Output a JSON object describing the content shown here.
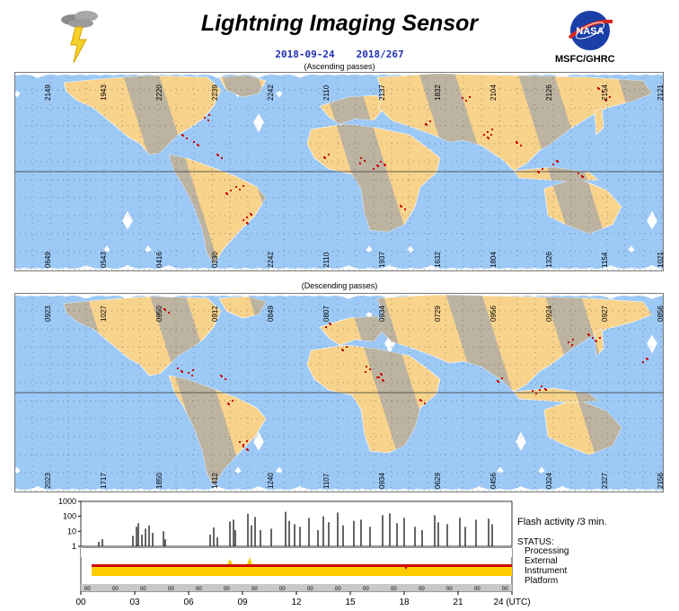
{
  "header": {
    "title": "Lightning Imaging Sensor",
    "date": "2018-09-24",
    "day_of_year": "2018/267",
    "org": "MSFC/GHRC",
    "nasa_logo_text": "NASA"
  },
  "colors": {
    "orbit_swath": "#9dc9f6",
    "land": "#f8d38c",
    "night_land": "#b3b3b3",
    "flash": "#cc0000",
    "status_yellow": "#ffcc00",
    "status_red": "#cc0000"
  },
  "maps": [
    {
      "caption": "(Ascending passes)",
      "top_labels": [
        "2149",
        "1943",
        "2220",
        "2239",
        "2242",
        "2110",
        "2137",
        "1832",
        "2104",
        "2126",
        "2154",
        "2121"
      ],
      "bottom_labels": [
        "0649",
        "0543",
        "0416",
        "0230",
        "2242",
        "2110",
        "1937",
        "1632",
        "1804",
        "1326",
        "1154",
        "1021"
      ]
    },
    {
      "caption": "(Descending passes)",
      "top_labels": [
        "0923",
        "1027",
        "0950",
        "0912",
        "0849",
        "0807",
        "0934",
        "0729",
        "0956",
        "0924",
        "0927",
        "0856"
      ],
      "bottom_labels": [
        "2023",
        "1717",
        "1850",
        "1412",
        "1240",
        "1107",
        "0934",
        "0629",
        "0456",
        "0324",
        "2327",
        "2156"
      ]
    }
  ],
  "chart_data": {
    "type": "bar",
    "title": "Flash activity /3 min.",
    "y_tick_labels": [
      "1000",
      "100",
      "10",
      "1"
    ],
    "yscale": "log",
    "ylim": [
      1,
      1000
    ],
    "xlim": [
      0,
      24
    ],
    "x_tick_labels": [
      "00",
      "03",
      "06",
      "09",
      "12",
      "15",
      "18",
      "21",
      "24 (UTC)"
    ],
    "status_title": "STATUS:",
    "status_rows": [
      "Processing",
      "External",
      "Instrument",
      "Platform"
    ],
    "platform_tick_label": "00",
    "series": [
      {
        "values": [
          [
            1.0,
            2
          ],
          [
            1.2,
            3
          ],
          [
            2.9,
            5
          ],
          [
            3.1,
            20
          ],
          [
            3.2,
            35
          ],
          [
            3.4,
            6
          ],
          [
            3.6,
            15
          ],
          [
            3.8,
            25
          ],
          [
            4.0,
            8
          ],
          [
            4.6,
            10
          ],
          [
            4.7,
            3
          ],
          [
            7.2,
            6
          ],
          [
            7.4,
            18
          ],
          [
            7.6,
            4
          ],
          [
            8.3,
            45
          ],
          [
            8.5,
            60
          ],
          [
            8.6,
            12
          ],
          [
            9.3,
            150
          ],
          [
            9.5,
            25
          ],
          [
            9.7,
            90
          ],
          [
            10.0,
            12
          ],
          [
            10.6,
            15
          ],
          [
            11.4,
            200
          ],
          [
            11.6,
            50
          ],
          [
            11.9,
            30
          ],
          [
            12.2,
            20
          ],
          [
            12.7,
            80
          ],
          [
            13.2,
            12
          ],
          [
            13.5,
            100
          ],
          [
            13.8,
            40
          ],
          [
            14.3,
            180
          ],
          [
            14.6,
            25
          ],
          [
            15.2,
            50
          ],
          [
            15.6,
            60
          ],
          [
            16.1,
            20
          ],
          [
            16.8,
            120
          ],
          [
            17.2,
            160
          ],
          [
            17.6,
            35
          ],
          [
            18.0,
            80
          ],
          [
            18.6,
            20
          ],
          [
            19.0,
            12
          ],
          [
            19.7,
            120
          ],
          [
            19.9,
            40
          ],
          [
            20.4,
            30
          ],
          [
            21.1,
            80
          ],
          [
            21.4,
            20
          ],
          [
            22.0,
            60
          ],
          [
            22.7,
            70
          ],
          [
            22.9,
            30
          ]
        ]
      }
    ]
  }
}
